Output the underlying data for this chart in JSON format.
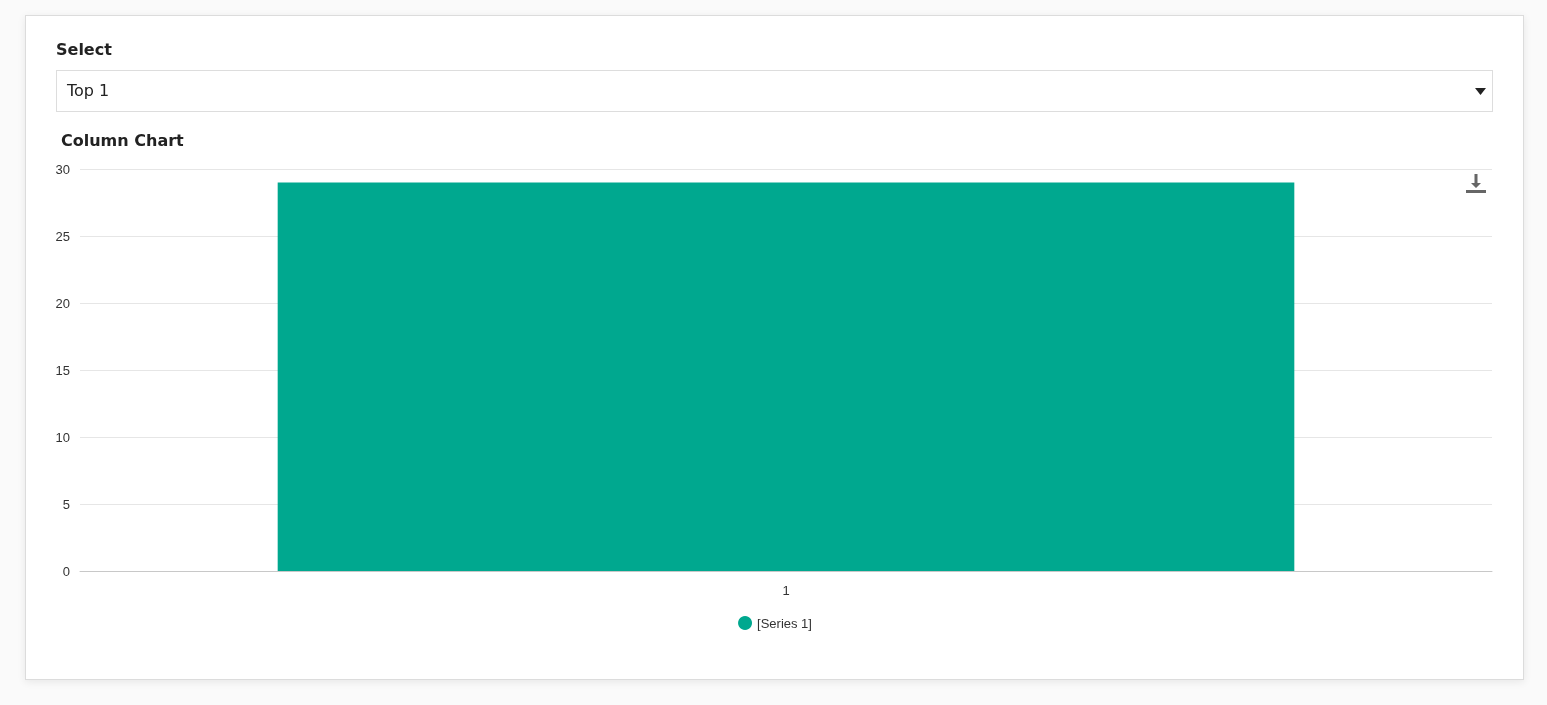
{
  "chart_data": {
    "type": "bar",
    "title": "Column Chart",
    "annotations": [
      "Select",
      "Top 1"
    ],
    "categories": [
      "1"
    ],
    "series": [
      {
        "name": "[Series 1]",
        "color": "#00a88f",
        "values": [
          29
        ]
      }
    ],
    "ylim": [
      0,
      30
    ],
    "yticks": [
      0,
      5,
      10,
      15,
      20,
      25,
      30
    ],
    "grid": "y",
    "legend": "bottom"
  }
}
